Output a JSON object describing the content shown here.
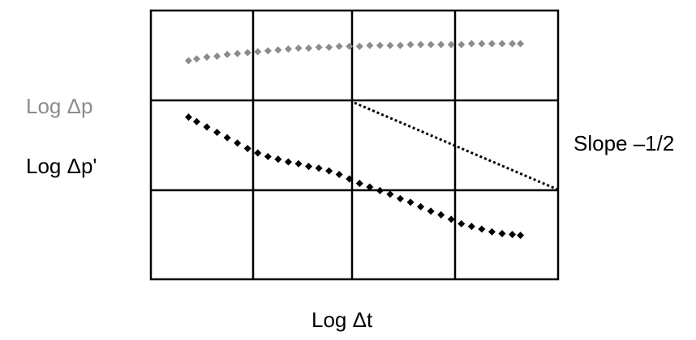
{
  "chart_data": {
    "type": "scatter",
    "title": "",
    "xlabel": "Log Δt",
    "ylabel_pressure": "Log Δp",
    "ylabel_derivative": "Log Δp'",
    "annotation": "Slope –1/2",
    "grid": true,
    "xlim": [
      0,
      4
    ],
    "ylim": [
      0,
      3
    ],
    "series": [
      {
        "color": "#8c8c8c",
        "x": [
          0.37,
          0.45,
          0.55,
          0.65,
          0.75,
          0.85,
          0.95,
          1.05,
          1.15,
          1.25,
          1.35,
          1.45,
          1.55,
          1.65,
          1.75,
          1.85,
          1.95,
          2.05,
          2.15,
          2.25,
          2.35,
          2.45,
          2.55,
          2.65,
          2.75,
          2.85,
          2.95,
          3.05,
          3.15,
          3.25,
          3.35,
          3.45,
          3.55,
          3.63
        ],
        "y": [
          2.44,
          2.46,
          2.48,
          2.49,
          2.51,
          2.52,
          2.53,
          2.54,
          2.55,
          2.56,
          2.57,
          2.58,
          2.58,
          2.59,
          2.59,
          2.6,
          2.6,
          2.6,
          2.61,
          2.61,
          2.61,
          2.61,
          2.62,
          2.62,
          2.62,
          2.62,
          2.62,
          2.62,
          2.63,
          2.63,
          2.63,
          2.63,
          2.63,
          2.63
        ]
      },
      {
        "color": "#000000",
        "x": [
          0.37,
          0.45,
          0.55,
          0.65,
          0.75,
          0.85,
          0.95,
          1.05,
          1.15,
          1.25,
          1.35,
          1.45,
          1.55,
          1.65,
          1.75,
          1.85,
          1.95,
          2.05,
          2.15,
          2.25,
          2.35,
          2.45,
          2.55,
          2.65,
          2.75,
          2.85,
          2.95,
          3.05,
          3.15,
          3.25,
          3.35,
          3.45,
          3.55,
          3.63
        ],
        "y": [
          1.81,
          1.76,
          1.7,
          1.64,
          1.58,
          1.52,
          1.46,
          1.41,
          1.37,
          1.34,
          1.31,
          1.29,
          1.26,
          1.24,
          1.21,
          1.17,
          1.12,
          1.07,
          1.03,
          0.99,
          0.95,
          0.9,
          0.86,
          0.81,
          0.76,
          0.72,
          0.67,
          0.62,
          0.59,
          0.56,
          0.53,
          0.51,
          0.5,
          0.49
        ]
      }
    ],
    "slope_line": {
      "x": [
        2.0,
        4.0
      ],
      "y": [
        1.97,
        1.0
      ],
      "style": "dotted"
    }
  }
}
